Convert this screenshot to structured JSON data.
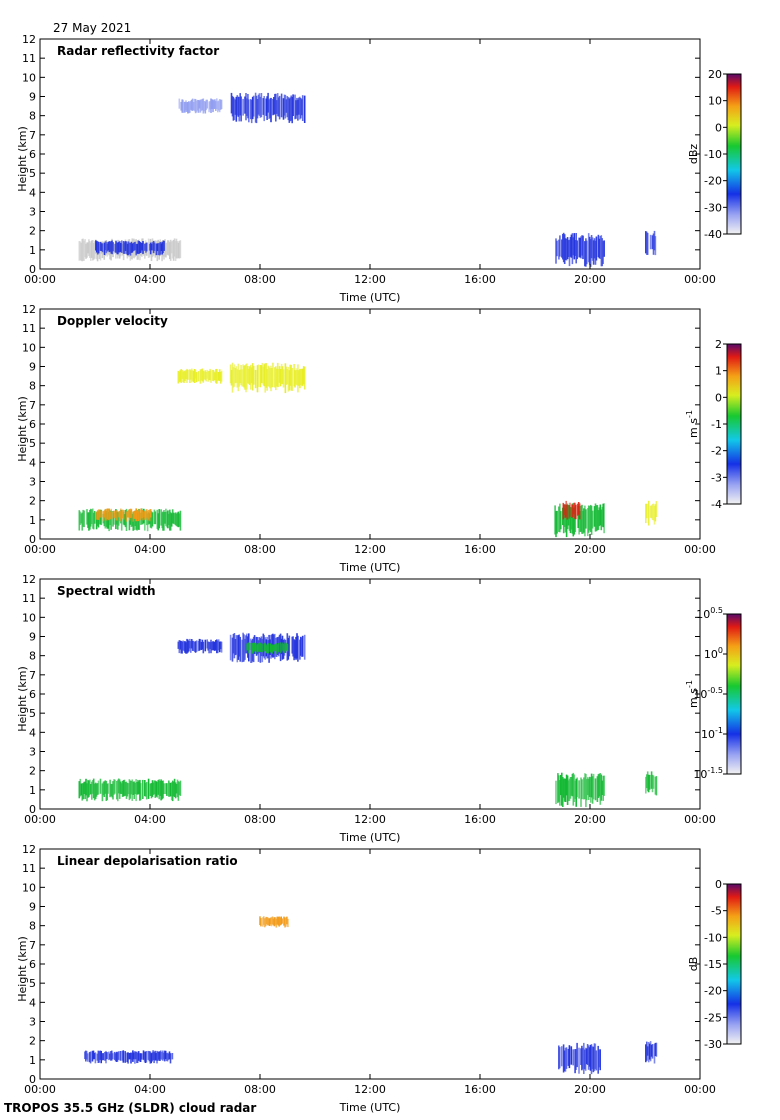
{
  "date_label": "27 May 2021",
  "footer": "TROPOS 35.5 GHz (SLDR) cloud radar",
  "colors": {
    "ice_blue": "#2233dd",
    "light_blue": "#8f9cf0",
    "gray_echo": "#c8c8c8",
    "green": "#12b832",
    "yellow": "#e8ee22",
    "orange": "#f29a16",
    "red": "#dd2211"
  },
  "chart_data": [
    {
      "type": "heatmap",
      "title": "Radar reflectivity factor",
      "xlabel": "Time (UTC)",
      "ylabel": "Height (km)",
      "xlim": [
        0,
        24
      ],
      "ylim": [
        0,
        12
      ],
      "xticks": [
        "00:00",
        "04:00",
        "08:00",
        "12:00",
        "16:00",
        "20:00",
        "00:00"
      ],
      "yticks": [
        "0",
        "1",
        "2",
        "3",
        "4",
        "5",
        "6",
        "7",
        "8",
        "9",
        "10",
        "11",
        "12"
      ],
      "colorbar": {
        "label": "dBz",
        "ticks": [
          "20",
          "10",
          "0",
          "-10",
          "-20",
          "-30",
          "-40"
        ],
        "range": [
          -40,
          20
        ]
      },
      "regions": [
        {
          "name": "high-cloud-west",
          "t": [
            5.0,
            6.6
          ],
          "h": [
            8.1,
            8.9
          ],
          "color": "light_blue"
        },
        {
          "name": "high-cloud-main",
          "t": [
            6.9,
            9.6
          ],
          "h": [
            7.6,
            9.2
          ],
          "color": "ice_blue"
        },
        {
          "name": "low-cloud-morning",
          "t": [
            1.4,
            5.1
          ],
          "h": [
            0.4,
            1.6
          ],
          "color": "gray_echo"
        },
        {
          "name": "low-cloud-morning-core",
          "t": [
            2.0,
            4.5
          ],
          "h": [
            0.7,
            1.5
          ],
          "color": "ice_blue"
        },
        {
          "name": "low-cloud-evening",
          "t": [
            18.7,
            20.5
          ],
          "h": [
            0.1,
            1.9
          ],
          "color": "ice_blue"
        },
        {
          "name": "low-cloud-night",
          "t": [
            22.0,
            22.4
          ],
          "h": [
            0.7,
            2.0
          ],
          "color": "ice_blue"
        }
      ]
    },
    {
      "type": "heatmap",
      "title": "Doppler velocity",
      "xlabel": "Time (UTC)",
      "ylabel": "Height (km)",
      "xlim": [
        0,
        24
      ],
      "ylim": [
        0,
        12
      ],
      "xticks": [
        "00:00",
        "04:00",
        "08:00",
        "12:00",
        "16:00",
        "20:00",
        "00:00"
      ],
      "yticks": [
        "0",
        "1",
        "2",
        "3",
        "4",
        "5",
        "6",
        "7",
        "8",
        "9",
        "10",
        "11",
        "12"
      ],
      "colorbar": {
        "label": "m s",
        "label_superscript": "-1",
        "ticks": [
          "2",
          "1",
          "0",
          "-1",
          "-2",
          "-3",
          "-4"
        ],
        "range": [
          -4,
          2
        ]
      },
      "regions": [
        {
          "name": "high-cloud-west",
          "t": [
            5.0,
            6.6
          ],
          "h": [
            8.1,
            8.9
          ],
          "color": "yellow"
        },
        {
          "name": "high-cloud-main",
          "t": [
            6.9,
            9.6
          ],
          "h": [
            7.6,
            9.2
          ],
          "color": "yellow"
        },
        {
          "name": "low-cloud-morning",
          "t": [
            1.4,
            5.1
          ],
          "h": [
            0.4,
            1.6
          ],
          "color": "green"
        },
        {
          "name": "low-cloud-morning-core",
          "t": [
            2.0,
            4.0
          ],
          "h": [
            0.9,
            1.6
          ],
          "color": "orange"
        },
        {
          "name": "low-cloud-evening",
          "t": [
            18.7,
            20.5
          ],
          "h": [
            0.1,
            1.9
          ],
          "color": "green"
        },
        {
          "name": "low-cloud-evening-core",
          "t": [
            19.0,
            19.6
          ],
          "h": [
            1.0,
            2.0
          ],
          "color": "red"
        },
        {
          "name": "low-cloud-night",
          "t": [
            22.0,
            22.4
          ],
          "h": [
            0.7,
            2.0
          ],
          "color": "yellow"
        }
      ]
    },
    {
      "type": "heatmap",
      "title": "Spectral width",
      "xlabel": "Time (UTC)",
      "ylabel": "Height (km)",
      "xlim": [
        0,
        24
      ],
      "ylim": [
        0,
        12
      ],
      "xticks": [
        "00:00",
        "04:00",
        "08:00",
        "12:00",
        "16:00",
        "20:00",
        "00:00"
      ],
      "yticks": [
        "0",
        "1",
        "2",
        "3",
        "4",
        "5",
        "6",
        "7",
        "8",
        "9",
        "10",
        "11",
        "12"
      ],
      "colorbar": {
        "label": "m s",
        "label_superscript": "-1",
        "ticks": [
          "10^0.5",
          "10^0",
          "10^-0.5",
          "10^-1",
          "10^-1.5"
        ],
        "range": [
          -1.5,
          0.5
        ]
      },
      "regions": [
        {
          "name": "high-cloud-west",
          "t": [
            5.0,
            6.6
          ],
          "h": [
            8.1,
            8.9
          ],
          "color": "ice_blue"
        },
        {
          "name": "high-cloud-main",
          "t": [
            6.9,
            9.6
          ],
          "h": [
            7.6,
            9.2
          ],
          "color": "ice_blue"
        },
        {
          "name": "high-cloud-main-core",
          "t": [
            7.5,
            9.0
          ],
          "h": [
            8.1,
            8.7
          ],
          "color": "green"
        },
        {
          "name": "low-cloud-morning",
          "t": [
            1.4,
            5.1
          ],
          "h": [
            0.4,
            1.6
          ],
          "color": "green"
        },
        {
          "name": "low-cloud-evening",
          "t": [
            18.7,
            20.5
          ],
          "h": [
            0.1,
            1.9
          ],
          "color": "green"
        },
        {
          "name": "low-cloud-night",
          "t": [
            22.0,
            22.4
          ],
          "h": [
            0.7,
            2.0
          ],
          "color": "green"
        }
      ]
    },
    {
      "type": "heatmap",
      "title": "Linear depolarisation ratio",
      "xlabel": "Time (UTC)",
      "ylabel": "Height (km)",
      "xlim": [
        0,
        24
      ],
      "ylim": [
        0,
        12
      ],
      "xticks": [
        "00:00",
        "04:00",
        "08:00",
        "12:00",
        "16:00",
        "20:00",
        "00:00"
      ],
      "yticks": [
        "0",
        "1",
        "2",
        "3",
        "4",
        "5",
        "6",
        "7",
        "8",
        "9",
        "10",
        "11",
        "12"
      ],
      "colorbar": {
        "label": "dB",
        "ticks": [
          "0",
          "-5",
          "-10",
          "-15",
          "-20",
          "-25",
          "-30"
        ],
        "range": [
          -30,
          0
        ]
      },
      "regions": [
        {
          "name": "high-cloud-speckle",
          "t": [
            7.9,
            9.0
          ],
          "h": [
            7.9,
            8.5
          ],
          "color": "orange"
        },
        {
          "name": "low-cloud-morning",
          "t": [
            1.6,
            4.8
          ],
          "h": [
            0.8,
            1.5
          ],
          "color": "ice_blue"
        },
        {
          "name": "low-cloud-evening",
          "t": [
            18.8,
            20.4
          ],
          "h": [
            0.2,
            1.9
          ],
          "color": "ice_blue"
        },
        {
          "name": "low-cloud-night",
          "t": [
            22.0,
            22.4
          ],
          "h": [
            0.8,
            2.0
          ],
          "color": "ice_blue"
        }
      ]
    }
  ]
}
